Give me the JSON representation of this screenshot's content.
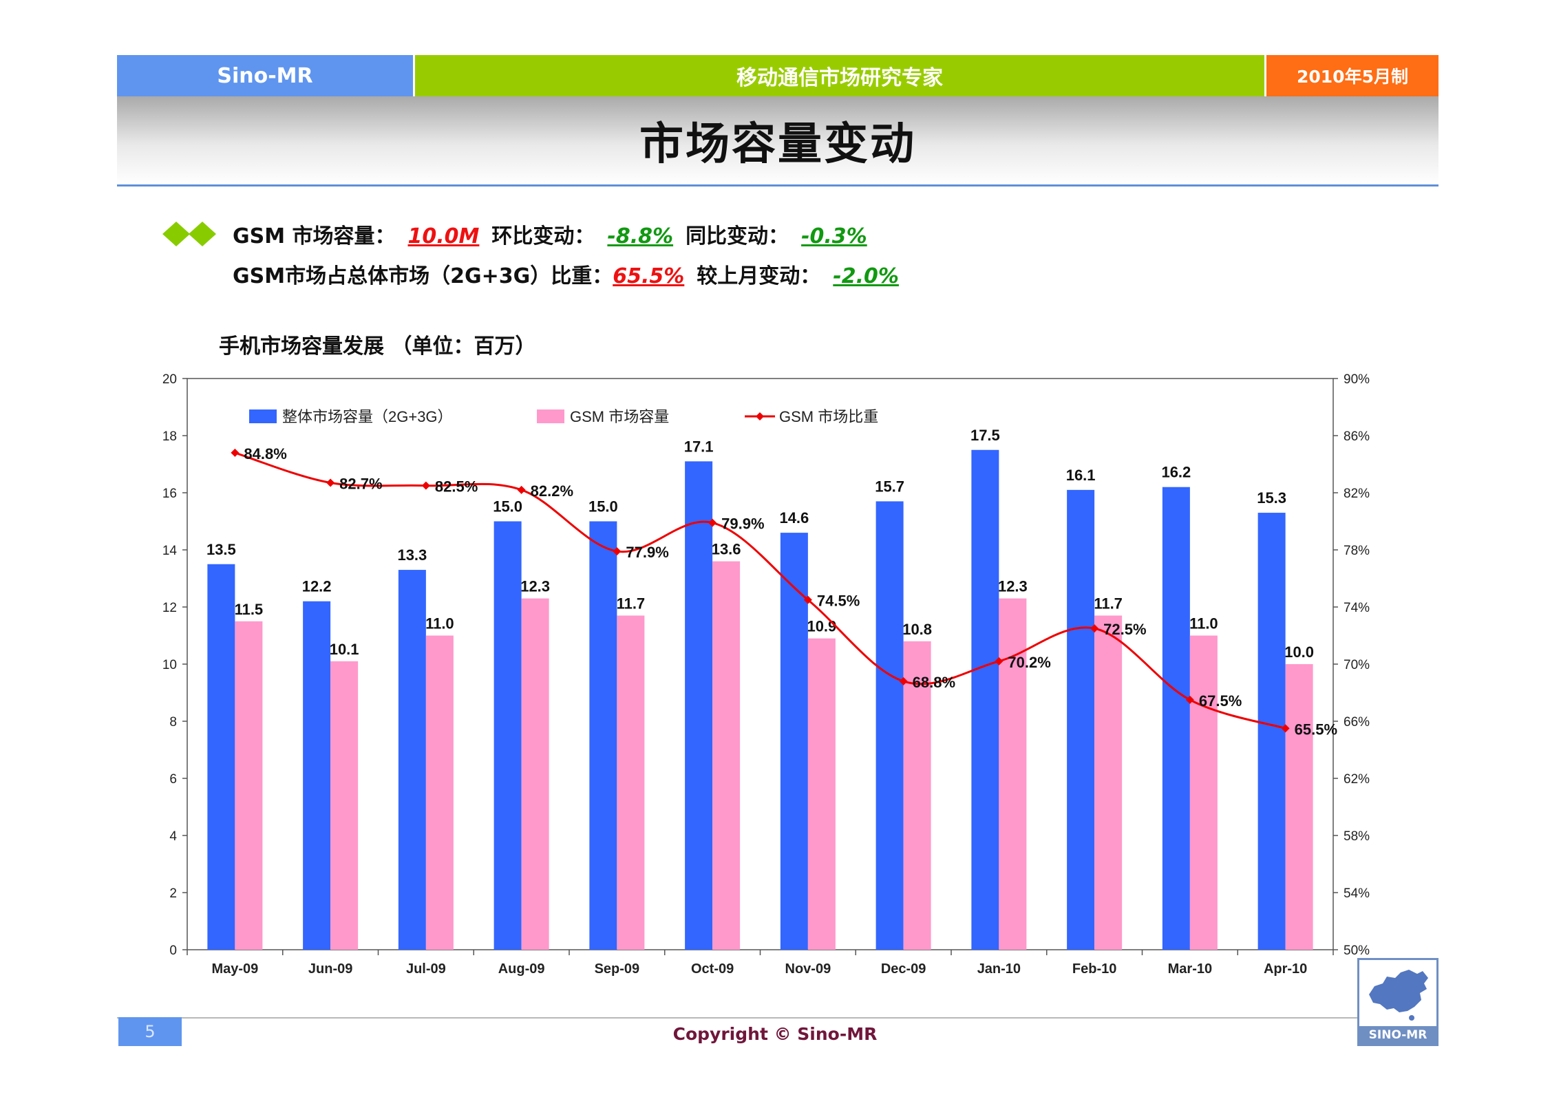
{
  "header": {
    "brand": "Sino-MR",
    "tagline": "移动通信市场研究专家",
    "date": "2010年5月制"
  },
  "page_title": "市场容量变动",
  "summary": {
    "line1": {
      "label1": "GSM 市场容量：",
      "value1": "10.0M",
      "label2": "环比变动：",
      "value2": "-8.8%",
      "label3": "同比变动：",
      "value3": "-0.3%"
    },
    "line2": {
      "label1": "GSM市场占总体市场（2G+3G）比重：",
      "value1": "65.5%",
      "label2": "较上月变动：",
      "value2": "-2.0%"
    }
  },
  "chart_title": "手机市场容量发展 （单位：百万）",
  "footer": {
    "page_number": "5",
    "copyright": "Copyright © Sino-MR",
    "logo_text": "SINO-MR"
  },
  "colors": {
    "blue_bar": "#3366ff",
    "pink_bar": "#ff99cc",
    "line": "#ee0000",
    "header_blue": "#5f95ef",
    "header_green": "#99cc00",
    "header_orange": "#ff6d14"
  },
  "chart_data": {
    "type": "bar",
    "categories": [
      "May-09",
      "Jun-09",
      "Jul-09",
      "Aug-09",
      "Sep-09",
      "Oct-09",
      "Nov-09",
      "Dec-09",
      "Jan-10",
      "Feb-10",
      "Mar-10",
      "Apr-10"
    ],
    "series": [
      {
        "name": "整体市场容量（2G+3G）",
        "type": "bar",
        "axis": "left",
        "color": "#3366ff",
        "values": [
          13.5,
          12.2,
          13.3,
          15.0,
          15.0,
          17.1,
          14.6,
          15.7,
          17.5,
          16.1,
          16.2,
          15.3
        ],
        "labels": [
          "13.5",
          "12.2",
          "13.3",
          "15.0",
          "15.0",
          "17.1",
          "14.6",
          "15.7",
          "17.5",
          "16.1",
          "16.2",
          "15.3"
        ]
      },
      {
        "name": "GSM 市场容量",
        "type": "bar",
        "axis": "left",
        "color": "#ff99cc",
        "values": [
          11.5,
          10.1,
          11.0,
          12.3,
          11.7,
          13.6,
          10.9,
          10.8,
          12.3,
          11.7,
          11.0,
          10.0
        ],
        "labels": [
          "11.5",
          "10.1",
          "11.0",
          "12.3",
          "11.7",
          "13.6",
          "10.9",
          "10.8",
          "12.3",
          "11.7",
          "11.0",
          "10.0"
        ]
      },
      {
        "name": "GSM 市场比重",
        "type": "line",
        "axis": "right",
        "color": "#ee0000",
        "values": [
          84.8,
          82.7,
          82.5,
          82.2,
          77.9,
          79.9,
          74.5,
          68.8,
          70.2,
          72.5,
          67.5,
          65.5
        ],
        "labels": [
          "84.8%",
          "82.7%",
          "82.5%",
          "82.2%",
          "77.9%",
          "79.9%",
          "74.5%",
          "68.8%",
          "70.2%",
          "72.5%",
          "67.5%",
          "65.5%"
        ]
      }
    ],
    "y_left": {
      "min": 0,
      "max": 20,
      "ticks": [
        "0",
        "2",
        "4",
        "6",
        "8",
        "10",
        "12",
        "14",
        "16",
        "18",
        "20"
      ]
    },
    "y_right": {
      "min": 50,
      "max": 90,
      "ticks": [
        "50%",
        "54%",
        "58%",
        "62%",
        "66%",
        "70%",
        "74%",
        "78%",
        "82%",
        "86%",
        "90%"
      ]
    },
    "legend_position": "top-left",
    "grid": false
  }
}
